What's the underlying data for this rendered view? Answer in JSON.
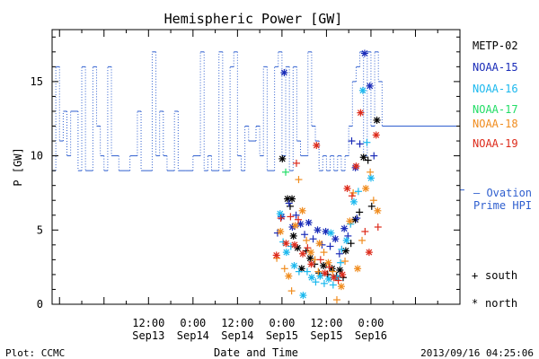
{
  "chart_data": {
    "type": "scatter",
    "title": "Hemispheric Power [GW]",
    "xlabel": "Date and Time",
    "ylabel": "P [GW]",
    "ylim": [
      0,
      18.5
    ],
    "xlim_hours": [
      -38,
      72
    ],
    "y_ticks": [
      0,
      5,
      10,
      15
    ],
    "x_ticks": [
      {
        "hour": -12,
        "time": "12:00",
        "date": "Sep13"
      },
      {
        "hour": 0,
        "time": "0:00",
        "date": "Sep14"
      },
      {
        "hour": 12,
        "time": "12:00",
        "date": "Sep14"
      },
      {
        "hour": 24,
        "time": "0:00",
        "date": "Sep15"
      },
      {
        "hour": 36,
        "time": "12:00",
        "date": "Sep15"
      },
      {
        "hour": 48,
        "time": "0:00",
        "date": "Sep16"
      }
    ],
    "legend_placement": "right",
    "legend": [
      {
        "name": "METP-02",
        "color": "#000000"
      },
      {
        "name": "NOAA-15",
        "color": "#1a2cb8"
      },
      {
        "name": "NOAA-16",
        "color": "#1ab8ee"
      },
      {
        "name": "NOAA-17",
        "color": "#22dd66"
      },
      {
        "name": "NOAA-18",
        "color": "#f08c1e"
      },
      {
        "name": "NOAA-19",
        "color": "#dd2a1a"
      }
    ],
    "ovation_label": [
      "— Ovation",
      "Prime HPI"
    ],
    "ovation_color": "#2f5fcf",
    "symbol_key": [
      {
        "symbol": "+",
        "label": "south"
      },
      {
        "symbol": "*",
        "label": "north"
      }
    ],
    "ovation_series": [
      [
        -39,
        9
      ],
      [
        -37,
        16
      ],
      [
        -36,
        11
      ],
      [
        -35,
        13
      ],
      [
        -34,
        10
      ],
      [
        -33,
        13
      ],
      [
        -31,
        9
      ],
      [
        -30,
        16
      ],
      [
        -29,
        9
      ],
      [
        -27,
        16
      ],
      [
        -26,
        12
      ],
      [
        -25,
        10
      ],
      [
        -24,
        9
      ],
      [
        -23,
        16
      ],
      [
        -22,
        10
      ],
      [
        -20,
        9
      ],
      [
        -17,
        10
      ],
      [
        -15,
        13
      ],
      [
        -14,
        9
      ],
      [
        -11,
        17
      ],
      [
        -10,
        10
      ],
      [
        -9,
        13
      ],
      [
        -8,
        10
      ],
      [
        -7,
        9
      ],
      [
        -5,
        13
      ],
      [
        -4,
        9
      ],
      [
        -2,
        9
      ],
      [
        0,
        10
      ],
      [
        2,
        17
      ],
      [
        3,
        9
      ],
      [
        4,
        10
      ],
      [
        5,
        9
      ],
      [
        7,
        17
      ],
      [
        8,
        9
      ],
      [
        10,
        16
      ],
      [
        11,
        17
      ],
      [
        12,
        10
      ],
      [
        13,
        9
      ],
      [
        14,
        12
      ],
      [
        15,
        11
      ],
      [
        17,
        12
      ],
      [
        18,
        10
      ],
      [
        19,
        16
      ],
      [
        20,
        9
      ],
      [
        22,
        16
      ],
      [
        23,
        17
      ],
      [
        24,
        10
      ],
      [
        25,
        16
      ],
      [
        26,
        9
      ],
      [
        27,
        16
      ],
      [
        28,
        11
      ],
      [
        29,
        10
      ],
      [
        31,
        17
      ],
      [
        32,
        12
      ],
      [
        33,
        11
      ],
      [
        34,
        9
      ],
      [
        35,
        10
      ],
      [
        36,
        9
      ],
      [
        37,
        10
      ],
      [
        38,
        9
      ],
      [
        39,
        10
      ],
      [
        40,
        9
      ],
      [
        41,
        10
      ],
      [
        42,
        12
      ],
      [
        43,
        15
      ],
      [
        44,
        16
      ],
      [
        45,
        17
      ],
      [
        46,
        10
      ],
      [
        47,
        17
      ],
      [
        48,
        12
      ],
      [
        49,
        17
      ],
      [
        50,
        15
      ],
      [
        51,
        12
      ]
    ],
    "scatter_series": [
      {
        "color": "#000000",
        "points": [
          [
            25.5,
            7.1,
            "n"
          ],
          [
            26.2,
            6.6,
            "s"
          ],
          [
            27.1,
            4.6,
            "n"
          ],
          [
            28.2,
            3.8,
            "n"
          ],
          [
            29.3,
            2.4,
            "n"
          ],
          [
            30.5,
            3.6,
            "s"
          ],
          [
            31.6,
            3.1,
            "n"
          ],
          [
            32.8,
            2.7,
            "s"
          ],
          [
            34.0,
            2.1,
            "s"
          ],
          [
            35.2,
            2.6,
            "n"
          ],
          [
            36.3,
            2.0,
            "s"
          ],
          [
            37.5,
            2.4,
            "n"
          ],
          [
            38.7,
            1.9,
            "s"
          ],
          [
            39.6,
            2.3,
            "n"
          ],
          [
            40.5,
            1.8,
            "s"
          ],
          [
            41.2,
            3.6,
            "n"
          ],
          [
            42.6,
            4.1,
            "s"
          ],
          [
            43.8,
            5.7,
            "n"
          ],
          [
            44.9,
            6.2,
            "s"
          ],
          [
            46.0,
            9.9,
            "n"
          ],
          [
            47.2,
            9.7,
            "s"
          ],
          [
            48.2,
            6.6,
            "s"
          ],
          [
            49.6,
            12.4,
            "n"
          ],
          [
            24.1,
            9.8,
            "n"
          ],
          [
            26.7,
            7.1,
            "n"
          ]
        ]
      },
      {
        "color": "#1a2cb8",
        "points": [
          [
            22.8,
            4.8,
            "s"
          ],
          [
            23.9,
            5.9,
            "n"
          ],
          [
            24.6,
            15.6,
            "n"
          ],
          [
            25.9,
            6.8,
            "s"
          ],
          [
            26.8,
            5.2,
            "n"
          ],
          [
            27.8,
            6.0,
            "s"
          ],
          [
            29.0,
            5.4,
            "n"
          ],
          [
            30.1,
            4.7,
            "s"
          ],
          [
            31.2,
            5.5,
            "n"
          ],
          [
            32.4,
            4.4,
            "s"
          ],
          [
            33.6,
            5.0,
            "n"
          ],
          [
            34.8,
            4.0,
            "s"
          ],
          [
            35.8,
            4.9,
            "n"
          ],
          [
            37.0,
            3.9,
            "s"
          ],
          [
            38.4,
            4.4,
            "n"
          ],
          [
            39.5,
            3.4,
            "s"
          ],
          [
            40.8,
            5.1,
            "n"
          ],
          [
            41.8,
            4.6,
            "s"
          ],
          [
            42.8,
            11.0,
            "s"
          ],
          [
            43.8,
            9.2,
            "n"
          ],
          [
            45.0,
            10.8,
            "s"
          ],
          [
            46.3,
            16.9,
            "n"
          ],
          [
            47.7,
            14.7,
            "n"
          ],
          [
            48.8,
            10.0,
            "s"
          ],
          [
            44.2,
            5.8,
            "s"
          ]
        ]
      },
      {
        "color": "#1ab8ee",
        "points": [
          [
            23.5,
            6.1,
            "n"
          ],
          [
            24.3,
            4.2,
            "s"
          ],
          [
            25.2,
            3.5,
            "n"
          ],
          [
            26.4,
            3.9,
            "s"
          ],
          [
            27.3,
            2.6,
            "n"
          ],
          [
            28.6,
            2.2,
            "s"
          ],
          [
            29.7,
            0.6,
            "n"
          ],
          [
            30.8,
            2.2,
            "s"
          ],
          [
            32.0,
            1.8,
            "n"
          ],
          [
            33.1,
            1.5,
            "s"
          ],
          [
            34.3,
            1.9,
            "n"
          ],
          [
            35.4,
            1.4,
            "s"
          ],
          [
            36.6,
            1.7,
            "n"
          ],
          [
            37.8,
            1.3,
            "s"
          ],
          [
            38.9,
            1.8,
            "n"
          ],
          [
            40.1,
            3.7,
            "s"
          ],
          [
            41.4,
            4.3,
            "n"
          ],
          [
            42.5,
            5.4,
            "s"
          ],
          [
            43.4,
            6.9,
            "n"
          ],
          [
            44.6,
            7.6,
            "s"
          ],
          [
            45.8,
            14.4,
            "n"
          ],
          [
            46.9,
            10.9,
            "s"
          ],
          [
            48.0,
            8.5,
            "n"
          ],
          [
            37.2,
            4.8,
            "n"
          ],
          [
            39.8,
            2.8,
            "s"
          ]
        ]
      },
      {
        "color": "#22dd66",
        "points": [
          [
            25.0,
            8.9,
            "s"
          ]
        ]
      },
      {
        "color": "#f08c1e",
        "points": [
          [
            22.6,
            3.1,
            "s"
          ],
          [
            23.6,
            4.9,
            "n"
          ],
          [
            24.7,
            2.4,
            "s"
          ],
          [
            25.8,
            1.9,
            "n"
          ],
          [
            26.6,
            0.9,
            "s"
          ],
          [
            27.6,
            5.3,
            "n"
          ],
          [
            28.5,
            8.4,
            "s"
          ],
          [
            29.5,
            6.3,
            "n"
          ],
          [
            30.6,
            4.3,
            "s"
          ],
          [
            31.8,
            3.5,
            "n"
          ],
          [
            32.9,
            3.0,
            "s"
          ],
          [
            34.1,
            4.1,
            "n"
          ],
          [
            35.3,
            3.5,
            "s"
          ],
          [
            36.5,
            2.8,
            "n"
          ],
          [
            37.7,
            2.2,
            "s"
          ],
          [
            38.8,
            0.3,
            "s"
          ],
          [
            40.0,
            1.2,
            "n"
          ],
          [
            41.0,
            2.9,
            "s"
          ],
          [
            42.3,
            5.6,
            "n"
          ],
          [
            43.2,
            7.5,
            "s"
          ],
          [
            44.4,
            2.4,
            "n"
          ],
          [
            45.6,
            4.3,
            "s"
          ],
          [
            46.6,
            7.8,
            "n"
          ],
          [
            47.8,
            8.9,
            "s"
          ],
          [
            48.7,
            7.0,
            "s"
          ],
          [
            49.8,
            6.3,
            "n"
          ],
          [
            33.8,
            2.2,
            "s"
          ]
        ]
      },
      {
        "color": "#dd2a1a",
        "points": [
          [
            22.5,
            3.3,
            "n"
          ],
          [
            23.7,
            5.8,
            "s"
          ],
          [
            25.1,
            4.1,
            "n"
          ],
          [
            26.3,
            5.9,
            "s"
          ],
          [
            27.4,
            4.0,
            "n"
          ],
          [
            28.4,
            5.7,
            "s"
          ],
          [
            29.6,
            3.4,
            "n"
          ],
          [
            30.9,
            3.8,
            "s"
          ],
          [
            31.9,
            2.7,
            "n"
          ],
          [
            33.3,
            10.7,
            "n"
          ],
          [
            34.4,
            3.0,
            "s"
          ],
          [
            35.6,
            2.1,
            "n"
          ],
          [
            36.8,
            2.5,
            "s"
          ],
          [
            38.0,
            1.8,
            "n"
          ],
          [
            39.2,
            1.6,
            "s"
          ],
          [
            40.3,
            2.0,
            "n"
          ],
          [
            41.6,
            7.8,
            "n"
          ],
          [
            42.9,
            7.3,
            "s"
          ],
          [
            44.0,
            9.3,
            "n"
          ],
          [
            45.2,
            12.9,
            "n"
          ],
          [
            46.4,
            4.9,
            "s"
          ],
          [
            47.5,
            3.5,
            "n"
          ],
          [
            49.4,
            11.4,
            "n"
          ],
          [
            49.9,
            5.2,
            "s"
          ],
          [
            27.9,
            9.5,
            "s"
          ]
        ]
      }
    ]
  },
  "footer": {
    "left": "Plot: CCMC",
    "right": "2013/09/16 04:25:06"
  }
}
